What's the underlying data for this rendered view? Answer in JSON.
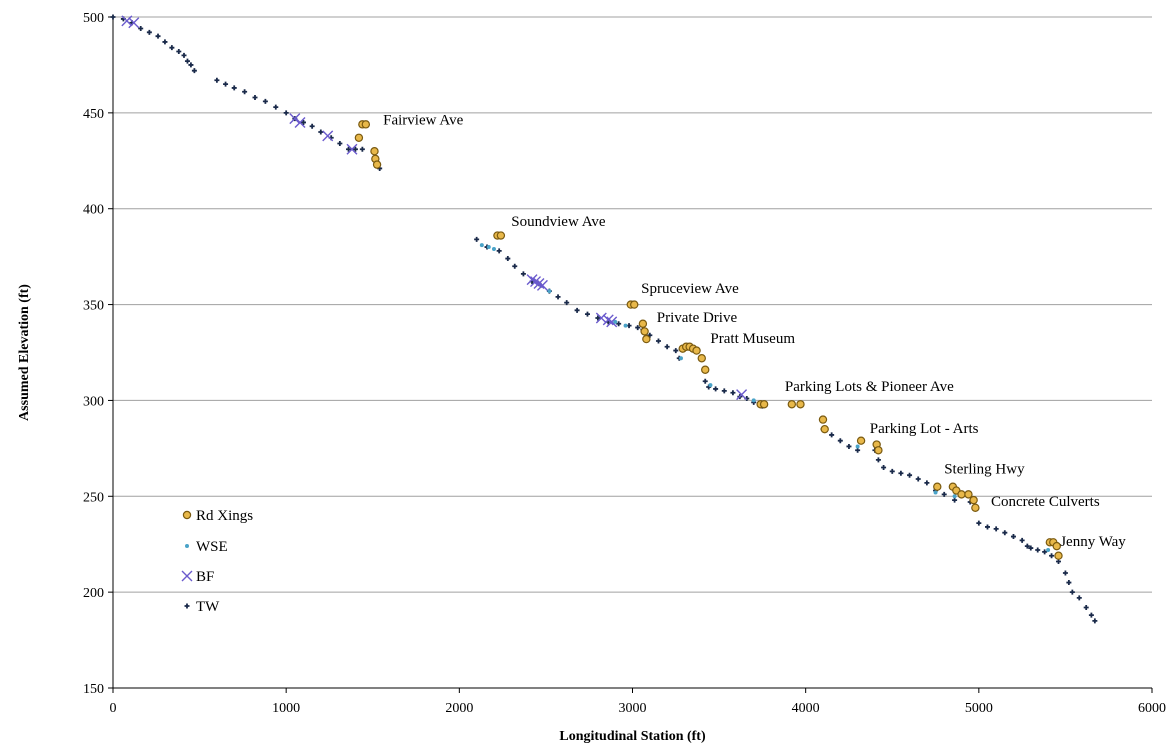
{
  "chart_data": {
    "type": "scatter",
    "xlabel": "Longitudinal Station (ft)",
    "ylabel": "Assumed Elevation (ft)",
    "xlim": [
      0,
      6000
    ],
    "ylim": [
      150,
      500
    ],
    "xticks": [
      0,
      1000,
      2000,
      3000,
      4000,
      5000,
      6000
    ],
    "yticks": [
      150,
      200,
      250,
      300,
      350,
      400,
      450,
      500
    ],
    "grid": "horizontal",
    "legend_position": "left",
    "colors": {
      "rd_xings_fill": "#e8b84a",
      "rd_xings_edge": "#7a5a10",
      "wse": "#4aa3c8",
      "bf": "#6a5acd",
      "tw": "#1a2a4a",
      "grid": "#a0a0a0"
    },
    "series": [
      {
        "name": "Rd Xings",
        "marker": "circle",
        "points": [
          [
            1440,
            444
          ],
          [
            1460,
            444
          ],
          [
            1420,
            437
          ],
          [
            1510,
            430
          ],
          [
            1515,
            426
          ],
          [
            1525,
            423
          ],
          [
            2220,
            386
          ],
          [
            2240,
            386
          ],
          [
            2990,
            350
          ],
          [
            3010,
            350
          ],
          [
            3060,
            340
          ],
          [
            3070,
            336
          ],
          [
            3080,
            332
          ],
          [
            3290,
            327
          ],
          [
            3310,
            328
          ],
          [
            3330,
            328
          ],
          [
            3350,
            327
          ],
          [
            3370,
            326
          ],
          [
            3400,
            322
          ],
          [
            3420,
            316
          ],
          [
            3740,
            298
          ],
          [
            3760,
            298
          ],
          [
            3920,
            298
          ],
          [
            3970,
            298
          ],
          [
            4100,
            290
          ],
          [
            4110,
            285
          ],
          [
            4320,
            279
          ],
          [
            4410,
            277
          ],
          [
            4420,
            274
          ],
          [
            4760,
            255
          ],
          [
            4850,
            255
          ],
          [
            4870,
            253
          ],
          [
            4900,
            251
          ],
          [
            4940,
            251
          ],
          [
            4970,
            248
          ],
          [
            4980,
            244
          ],
          [
            5410,
            226
          ],
          [
            5430,
            226
          ],
          [
            5450,
            224
          ],
          [
            5460,
            219
          ]
        ]
      },
      {
        "name": "WSE",
        "marker": "dot",
        "points": [
          [
            2130,
            381
          ],
          [
            2170,
            380
          ],
          [
            2200,
            379
          ],
          [
            2520,
            357
          ],
          [
            2900,
            341
          ],
          [
            2960,
            339
          ],
          [
            3280,
            322
          ],
          [
            3450,
            308
          ],
          [
            3700,
            300
          ],
          [
            4300,
            276
          ],
          [
            4750,
            252
          ],
          [
            4860,
            250
          ],
          [
            5400,
            222
          ]
        ]
      },
      {
        "name": "BF",
        "marker": "x",
        "points": [
          [
            80,
            498
          ],
          [
            120,
            497
          ],
          [
            1050,
            447
          ],
          [
            1080,
            445
          ],
          [
            1240,
            438
          ],
          [
            1380,
            431
          ],
          [
            2420,
            363
          ],
          [
            2440,
            362
          ],
          [
            2460,
            361
          ],
          [
            2480,
            360
          ],
          [
            2820,
            343
          ],
          [
            2860,
            342
          ],
          [
            2880,
            341
          ],
          [
            3630,
            303
          ]
        ]
      },
      {
        "name": "TW",
        "marker": "plus",
        "points": [
          [
            0,
            500
          ],
          [
            60,
            499
          ],
          [
            110,
            497
          ],
          [
            160,
            494
          ],
          [
            210,
            492
          ],
          [
            260,
            490
          ],
          [
            300,
            487
          ],
          [
            340,
            484
          ],
          [
            380,
            482
          ],
          [
            410,
            480
          ],
          [
            430,
            477
          ],
          [
            450,
            475
          ],
          [
            470,
            472
          ],
          [
            600,
            467
          ],
          [
            650,
            465
          ],
          [
            700,
            463
          ],
          [
            760,
            461
          ],
          [
            820,
            458
          ],
          [
            880,
            456
          ],
          [
            940,
            453
          ],
          [
            1000,
            450
          ],
          [
            1050,
            447
          ],
          [
            1100,
            445
          ],
          [
            1150,
            443
          ],
          [
            1200,
            440
          ],
          [
            1260,
            437
          ],
          [
            1310,
            434
          ],
          [
            1360,
            431
          ],
          [
            1400,
            431
          ],
          [
            1440,
            431
          ],
          [
            1520,
            425
          ],
          [
            1540,
            421
          ],
          [
            2100,
            384
          ],
          [
            2160,
            380
          ],
          [
            2230,
            378
          ],
          [
            2280,
            374
          ],
          [
            2320,
            370
          ],
          [
            2370,
            366
          ],
          [
            2420,
            362
          ],
          [
            2470,
            360
          ],
          [
            2520,
            357
          ],
          [
            2570,
            354
          ],
          [
            2620,
            351
          ],
          [
            2680,
            347
          ],
          [
            2740,
            345
          ],
          [
            2800,
            343
          ],
          [
            2860,
            341
          ],
          [
            2920,
            340
          ],
          [
            2980,
            339
          ],
          [
            3030,
            338
          ],
          [
            3060,
            337
          ],
          [
            3100,
            334
          ],
          [
            3150,
            331
          ],
          [
            3200,
            328
          ],
          [
            3250,
            326
          ],
          [
            3270,
            322
          ],
          [
            3420,
            310
          ],
          [
            3440,
            307
          ],
          [
            3480,
            306
          ],
          [
            3530,
            305
          ],
          [
            3580,
            304
          ],
          [
            3620,
            302
          ],
          [
            3660,
            301
          ],
          [
            3700,
            299
          ],
          [
            3750,
            297
          ],
          [
            4100,
            285
          ],
          [
            4150,
            282
          ],
          [
            4200,
            279
          ],
          [
            4250,
            276
          ],
          [
            4300,
            274
          ],
          [
            4400,
            274
          ],
          [
            4420,
            269
          ],
          [
            4450,
            265
          ],
          [
            4500,
            263
          ],
          [
            4550,
            262
          ],
          [
            4600,
            261
          ],
          [
            4650,
            259
          ],
          [
            4700,
            257
          ],
          [
            4750,
            253
          ],
          [
            4800,
            251
          ],
          [
            4860,
            248
          ],
          [
            4900,
            251
          ],
          [
            4950,
            247
          ],
          [
            5000,
            236
          ],
          [
            5050,
            234
          ],
          [
            5100,
            233
          ],
          [
            5150,
            231
          ],
          [
            5200,
            229
          ],
          [
            5250,
            227
          ],
          [
            5280,
            224
          ],
          [
            5300,
            223
          ],
          [
            5340,
            222
          ],
          [
            5380,
            221
          ],
          [
            5420,
            219
          ],
          [
            5460,
            216
          ],
          [
            5500,
            210
          ],
          [
            5520,
            205
          ],
          [
            5540,
            200
          ],
          [
            5580,
            197
          ],
          [
            5620,
            192
          ],
          [
            5650,
            188
          ],
          [
            5670,
            185
          ]
        ]
      }
    ],
    "annotations": [
      {
        "text": "Fairview Ave",
        "x": 1560,
        "y": 444
      },
      {
        "text": "Soundview Ave",
        "x": 2300,
        "y": 391
      },
      {
        "text": "Spruceview Ave",
        "x": 3050,
        "y": 356
      },
      {
        "text": "Private Drive",
        "x": 3140,
        "y": 341
      },
      {
        "text": "Pratt Museum",
        "x": 3450,
        "y": 330
      },
      {
        "text": "Parking Lots & Pioneer Ave",
        "x": 3880,
        "y": 305
      },
      {
        "text": "Parking Lot - Arts",
        "x": 4370,
        "y": 283
      },
      {
        "text": "Sterling Hwy",
        "x": 4800,
        "y": 262
      },
      {
        "text": "Concrete Culverts",
        "x": 5070,
        "y": 245
      },
      {
        "text": "Jenny Way",
        "x": 5470,
        "y": 224
      }
    ]
  }
}
